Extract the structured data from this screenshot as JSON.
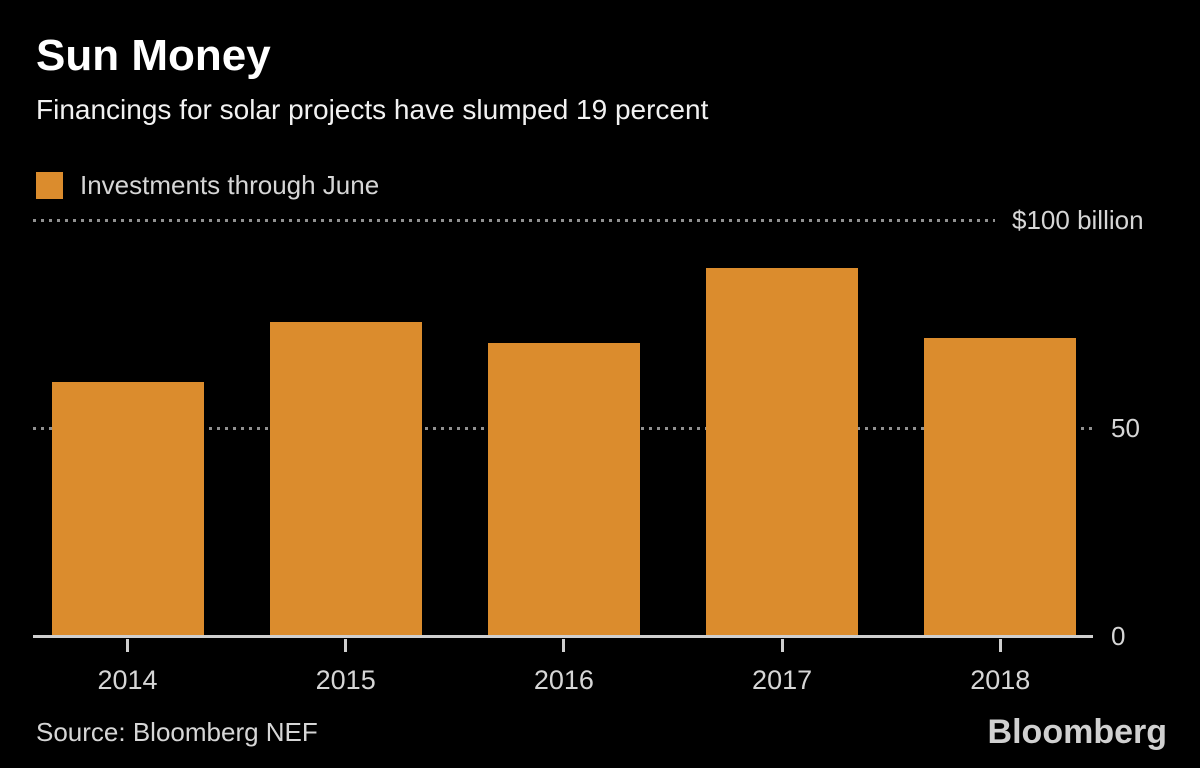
{
  "header": {
    "title": "Sun Money",
    "subtitle": "Financings for solar projects have slumped 19 percent"
  },
  "legend": {
    "label": "Investments through June"
  },
  "chart_data": {
    "type": "bar",
    "title": "Sun Money",
    "subtitle": "Financings for solar projects have slumped 19 percent",
    "series_name": "Investments through June",
    "categories": [
      "2014",
      "2015",
      "2016",
      "2017",
      "2018"
    ],
    "values": [
      61,
      75.5,
      70.5,
      88.4,
      71.6
    ],
    "unit": "billion USD",
    "ylim": [
      0,
      100
    ],
    "yticks": [
      {
        "value": 100,
        "label": "$100 billion"
      },
      {
        "value": 50,
        "label": "50"
      },
      {
        "value": 0,
        "label": "0"
      }
    ],
    "bar_color": "#DB8C2D",
    "background_color": "#000000",
    "grid": "horizontal dotted gridlines at 50 and 100, solid baseline at 0",
    "legend_position": "top-left",
    "ylabels_position": "right"
  },
  "footer": {
    "source": "Source: Bloomberg NEF",
    "brand": "Bloomberg"
  },
  "colors": {
    "bar": "#DB8C2D",
    "background": "#000000",
    "title_text": "#ffffff",
    "axis_text": "#d6d6d6",
    "gridline_dots": "#919191",
    "baseline": "#cfcfcf"
  }
}
